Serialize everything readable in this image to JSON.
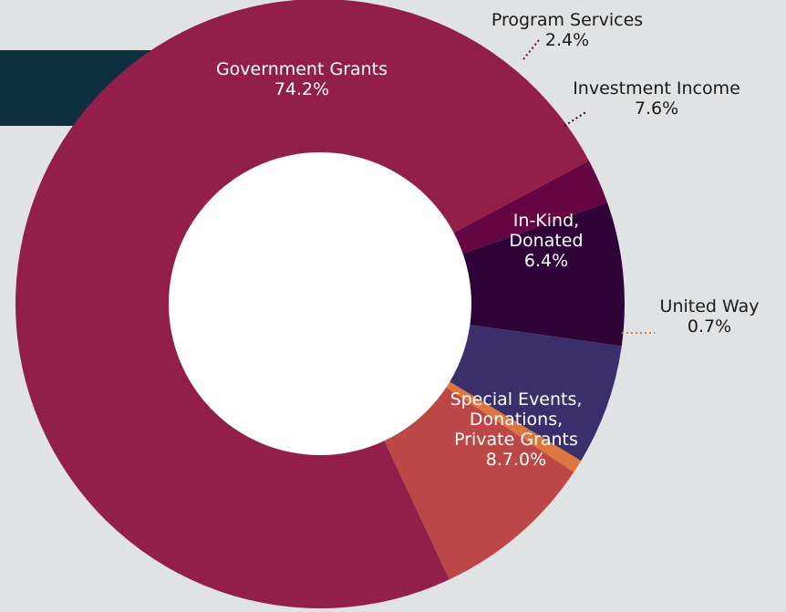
{
  "chart_data": {
    "type": "pie",
    "donut": true,
    "title": "",
    "legend": "none",
    "slices": [
      {
        "label_lines": [
          "Program Services"
        ],
        "value_text": "2.4%",
        "value": 2.4,
        "color": "#650542",
        "label_mode": "outside"
      },
      {
        "label_lines": [
          "Investment Income"
        ],
        "value_text": "7.6%",
        "value": 7.6,
        "color": "#2e0438",
        "label_mode": "outside"
      },
      {
        "label_lines": [
          "In-Kind,",
          "Donated"
        ],
        "value_text": "6.4%",
        "value": 6.4,
        "color": "#3a2f6b",
        "label_mode": "inside"
      },
      {
        "label_lines": [
          "United Way"
        ],
        "value_text": "0.7%",
        "value": 0.7,
        "color": "#dd773e",
        "label_mode": "outside"
      },
      {
        "label_lines": [
          "Special Events,",
          "Donations,",
          "Private Grants"
        ],
        "value_text": "8.7.0%",
        "value": 8.7,
        "color": "#bc4747",
        "label_mode": "inside"
      },
      {
        "label_lines": [
          "Government Grants"
        ],
        "value_text": "74.2%",
        "value": 74.2,
        "color": "#921f4a",
        "label_mode": "inside"
      }
    ]
  },
  "colors": {
    "background": "#e0e2e4",
    "header_band": "#0d3040",
    "donut_hole": "#ffffff"
  }
}
